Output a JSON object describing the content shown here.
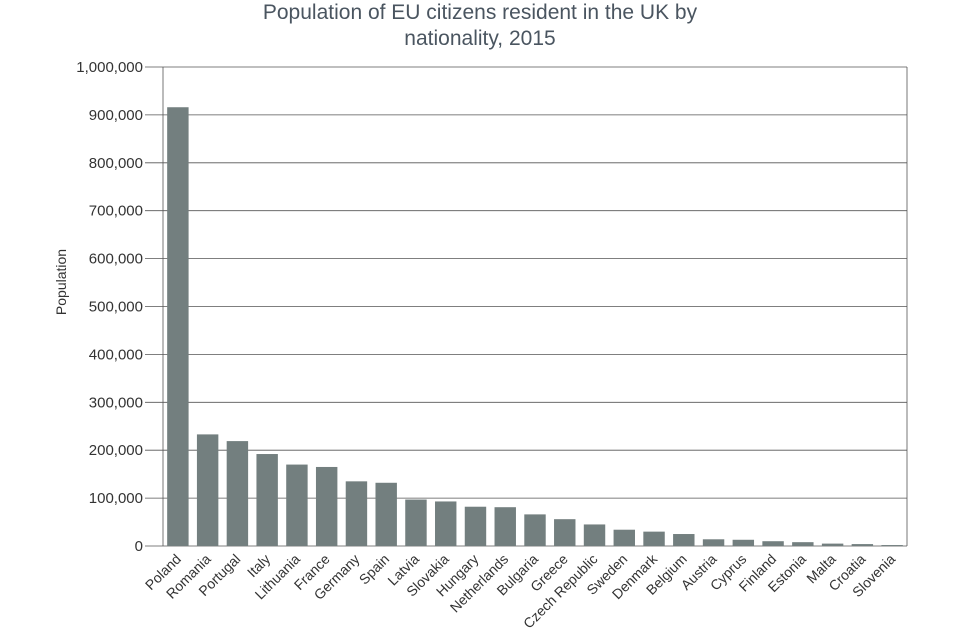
{
  "chart_data": {
    "type": "bar",
    "title_line1": "Population of EU citizens resident in the UK by",
    "title_line2": "nationality, 2015",
    "xlabel": "",
    "ylabel": "Population",
    "ylim": [
      0,
      1000000
    ],
    "yticks": [
      "0",
      "100,000",
      "200,000",
      "300,000",
      "400,000",
      "500,000",
      "600,000",
      "700,000",
      "800,000",
      "900,000",
      "1,000,000"
    ],
    "grid": true,
    "bar_color": "#737f7f",
    "categories": [
      "Poland",
      "Romania",
      "Portugal",
      "Italy",
      "Lithuania",
      "France",
      "Germany",
      "Spain",
      "Latvia",
      "Slovakia",
      "Hungary",
      "Netherlands",
      "Bulgaria",
      "Greece",
      "Czech Republic",
      "Sweden",
      "Denmark",
      "Belgium",
      "Austria",
      "Cyprus",
      "Finland",
      "Estonia",
      "Malta",
      "Croatia",
      "Slovenia"
    ],
    "values": [
      916000,
      233000,
      219000,
      192000,
      170000,
      165000,
      135000,
      132000,
      97000,
      93000,
      82000,
      81000,
      66000,
      56000,
      45000,
      34000,
      30000,
      25000,
      14000,
      13000,
      10000,
      8000,
      5000,
      4000,
      2000
    ]
  }
}
